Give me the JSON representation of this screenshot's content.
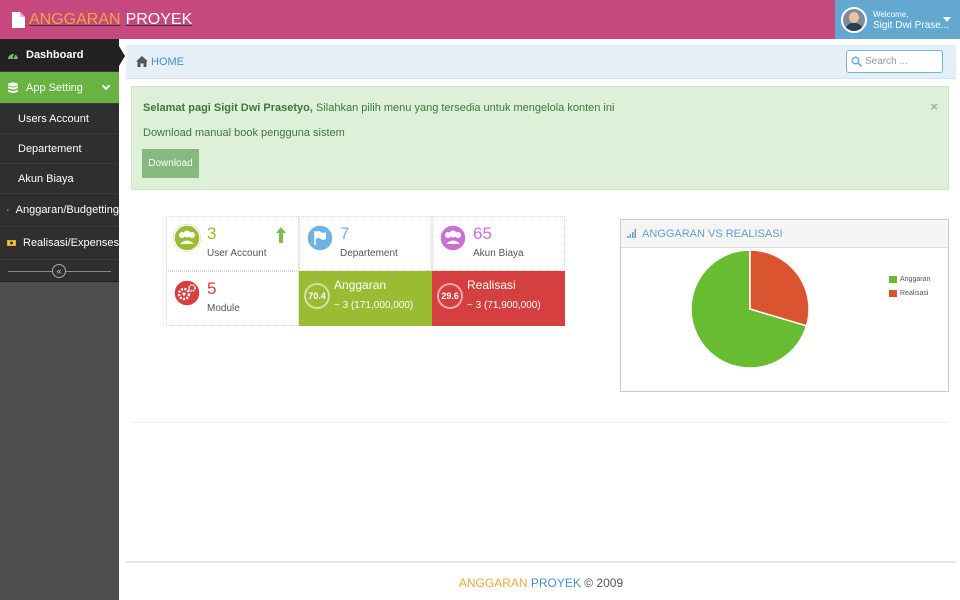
{
  "brand": {
    "part1": "ANGGARAN",
    "part2": "PROYEK"
  },
  "user": {
    "welcome": "Welcome,",
    "name": "Sigit Dwi Prase..."
  },
  "sidebar": {
    "items": [
      {
        "label": "Dashboard",
        "icon": "tachometer-icon"
      },
      {
        "label": "App Setting",
        "icon": "database-icon"
      },
      {
        "label": "Anggaran/Budgetting",
        "icon": "calendar-icon"
      },
      {
        "label": "Realisasi/Expenses",
        "icon": "money-icon"
      }
    ],
    "submenu": [
      "Users Account",
      "Departement",
      "Akun Biaya"
    ],
    "collapse_glyph": "«"
  },
  "breadcrumb": {
    "home": "HOME"
  },
  "search": {
    "placeholder": "Search ..."
  },
  "alert": {
    "greeting_bold": "Selamat pagi Sigit Dwi Prasetyo,",
    "greeting_rest": " Silahkan pilih menu yang tersedia untuk mengelola konten ini",
    "line2": "Download manual book pengguna sistem",
    "close": "×",
    "button": "Download"
  },
  "infoboxes": [
    {
      "number": "3",
      "label": "User Account",
      "color": "#9abc32",
      "icon": "users-icon"
    },
    {
      "number": "7",
      "label": "Departement",
      "color": "#6fb3e0",
      "icon": "flag-icon"
    },
    {
      "number": "65",
      "label": "Akun Biaya",
      "color": "#cb6fd7",
      "icon": "users-icon"
    },
    {
      "number": "5",
      "label": "Module",
      "color": "#d53f40",
      "icon": "cogs-icon"
    }
  ],
  "progress_boxes": [
    {
      "percent": "70.4",
      "title": "Anggaran",
      "subtitle": "~ 3 (171,000,000)",
      "color": "#9abc32"
    },
    {
      "percent": "29.6",
      "title": "Realisasi",
      "subtitle": "~ 3 (71,900,000)",
      "color": "#d53f40"
    }
  ],
  "chart_data": {
    "type": "pie",
    "title": "ANGGARAN VS REALISASI",
    "slices": [
      {
        "label": "Anggaran",
        "value": 70.4,
        "color": "#68bc31"
      },
      {
        "label": "Realisasi",
        "value": 29.6,
        "color": "#da5430"
      }
    ],
    "legend": "right"
  },
  "footer": {
    "part1": "ANGGARAN",
    "part2": "PROYEK",
    "rest": " © 2009"
  }
}
